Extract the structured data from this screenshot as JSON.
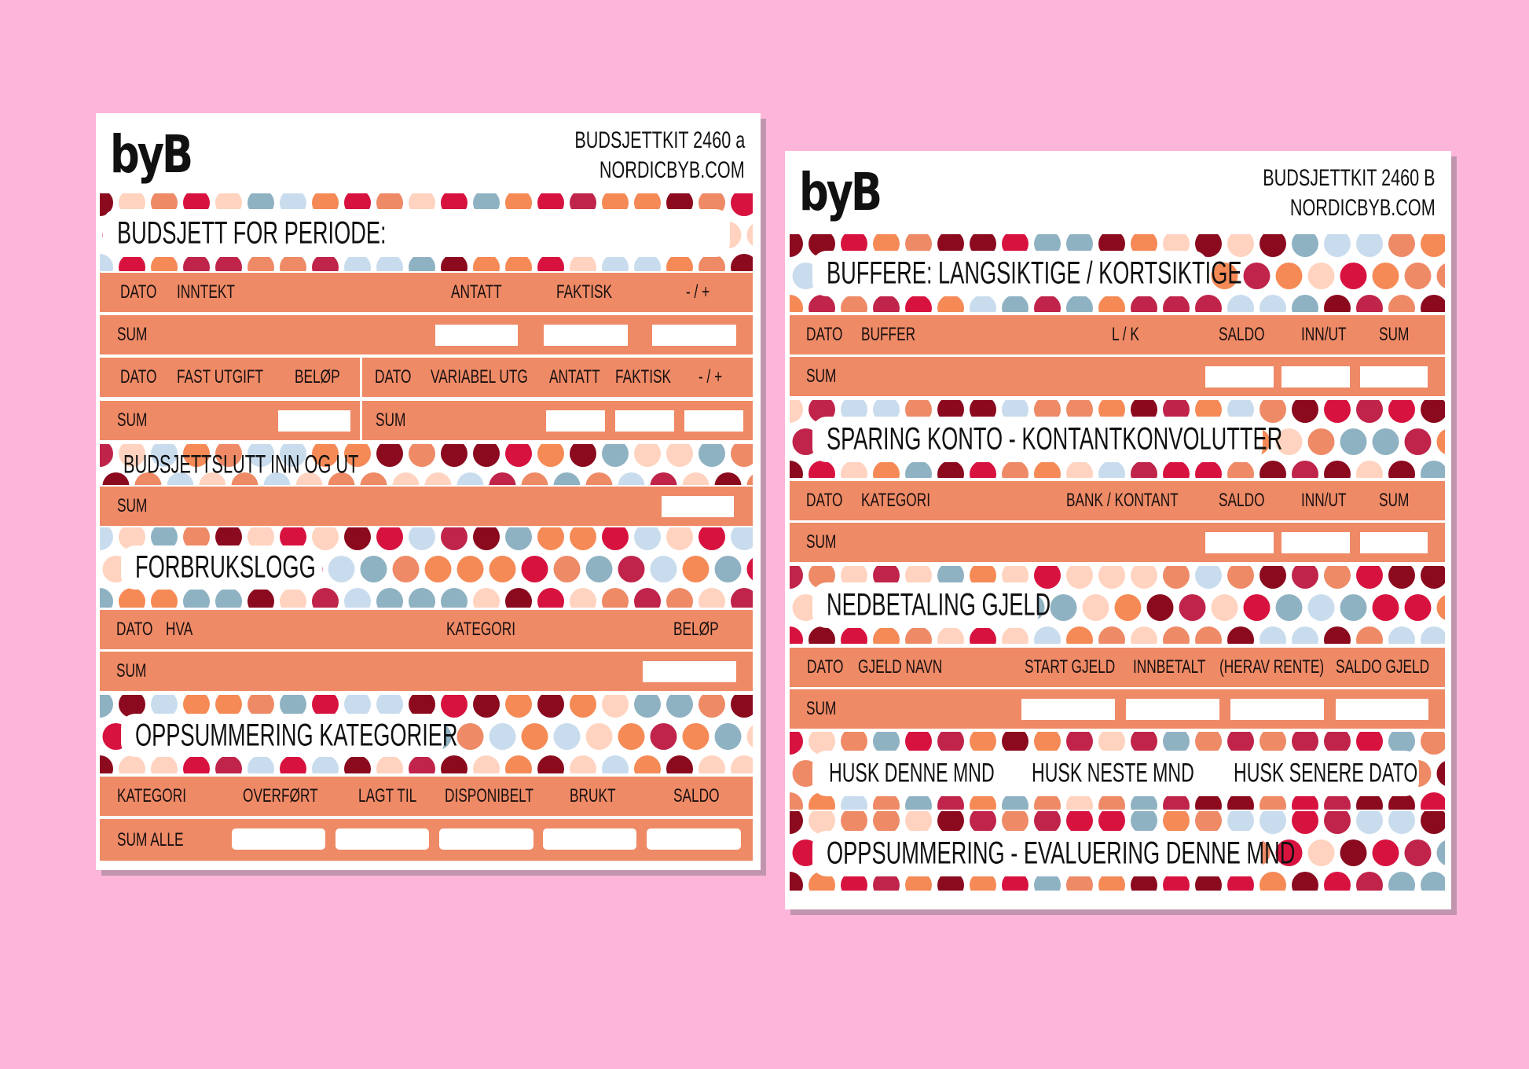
{
  "colors": {
    "background": "#fdb5d9",
    "band": "#ee8a66",
    "dots": [
      "#8b0a1e",
      "#d8123f",
      "#f58a56",
      "#ffd3bf",
      "#8fb2c3",
      "#c8dcee",
      "#c0244a",
      "#ee8a66"
    ]
  },
  "sheet_a": {
    "logo": "byB",
    "kit": "BUDSJETTKIT 2460 a",
    "site": "NORDICBYB.COM",
    "period_title": "BUDSJETT FOR PERIODE:",
    "income": [
      "DATO",
      "INNTEKT",
      "ANTATT",
      "FAKTISK",
      "- / +"
    ],
    "sum": "SUM",
    "fixed": [
      "DATO",
      "FAST UTGIFT",
      "BELØP"
    ],
    "variable": [
      "DATO",
      "VARIABEL UTG",
      "ANTATT",
      "FAKTISK",
      "- / +"
    ],
    "end_title": "BUDSJETTSLUTT INN OG UT",
    "log_title": "FORBRUKSLOGG",
    "log": [
      "DATO",
      "HVA",
      "KATEGORI",
      "BELØP"
    ],
    "summary_title": "OPPSUMMERING KATEGORIER",
    "summary": [
      "KATEGORI",
      "OVERFØRT",
      "LAGT TIL",
      "DISPONIBELT",
      "BRUKT",
      "SALDO"
    ],
    "sum_all": "SUM ALLE"
  },
  "sheet_b": {
    "logo": "byB",
    "kit": "BUDSJETTKIT 2460 B",
    "site": "NORDICBYB.COM",
    "buffer_title": "BUFFERE: LANGSIKTIGE / KORTSIKTIGE",
    "buffer": [
      "DATO",
      "BUFFER",
      "L / K",
      "SALDO",
      "INN/UT",
      "SUM"
    ],
    "sum": "SUM",
    "savings_title": "SPARING KONTO - KONTANTKONVOLUTTER",
    "savings": [
      "DATO",
      "KATEGORI",
      "BANK / KONTANT",
      "SALDO",
      "INN/UT",
      "SUM"
    ],
    "debt_title": "NEDBETALING GJELD",
    "debt": [
      "DATO",
      "GJELD NAVN",
      "START GJELD",
      "INNBETALT",
      "(HERAV RENTE)",
      "SALDO GJELD"
    ],
    "reminders": [
      "HUSK DENNE MND",
      "HUSK NESTE MND",
      "HUSK SENERE DATO"
    ],
    "evaluation_title": "OPPSUMMERING - EVALUERING DENNE MND"
  }
}
